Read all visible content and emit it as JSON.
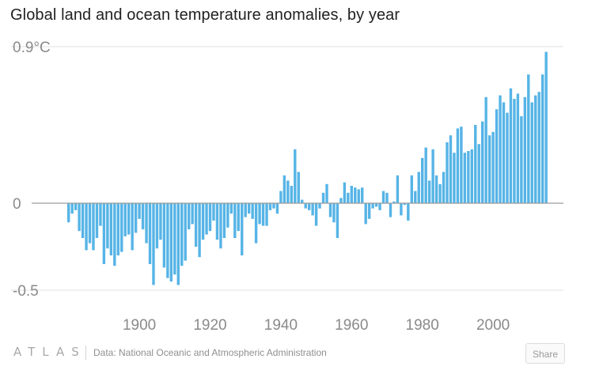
{
  "header": {
    "title": "Global land and ocean temperature anomalies, by year"
  },
  "footer": {
    "logo": "ATLAS",
    "source": "Data: National Oceanic and Atmospheric Administration",
    "share_label": "Share"
  },
  "colors": {
    "bar": "#56b4e6",
    "grid": "#e2e2e2",
    "zero_line": "#9a9a9a",
    "tick_text": "#8a8a8a"
  },
  "chart_data": {
    "type": "bar",
    "title": "Global land and ocean temperature anomalies, by year",
    "xlabel": "",
    "ylabel": "",
    "y_ticks": [
      {
        "value": 0.9,
        "label": "0.9°C"
      },
      {
        "value": 0,
        "label": "0"
      },
      {
        "value": -0.5,
        "label": "-0.5"
      }
    ],
    "x_ticks": [
      1900,
      1920,
      1940,
      1960,
      1980,
      2000
    ],
    "ylim": [
      -0.55,
      0.9
    ],
    "xlim": [
      1875,
      2020
    ],
    "grid": "horizontal",
    "series": [
      {
        "years": [
          1880,
          1881,
          1882,
          1883,
          1884,
          1885,
          1886,
          1887,
          1888,
          1889,
          1890,
          1891,
          1892,
          1893,
          1894,
          1895,
          1896,
          1897,
          1898,
          1899,
          1900,
          1901,
          1902,
          1903,
          1904,
          1905,
          1906,
          1907,
          1908,
          1909,
          1910,
          1911,
          1912,
          1913,
          1914,
          1915,
          1916,
          1917,
          1918,
          1919,
          1920,
          1921,
          1922,
          1923,
          1924,
          1925,
          1926,
          1927,
          1928,
          1929,
          1930,
          1931,
          1932,
          1933,
          1934,
          1935,
          1936,
          1937,
          1938,
          1939,
          1940,
          1941,
          1942,
          1943,
          1944,
          1945,
          1946,
          1947,
          1948,
          1949,
          1950,
          1951,
          1952,
          1953,
          1954,
          1955,
          1956,
          1957,
          1958,
          1959,
          1960,
          1961,
          1962,
          1963,
          1964,
          1965,
          1966,
          1967,
          1968,
          1969,
          1970,
          1971,
          1972,
          1973,
          1974,
          1975,
          1976,
          1977,
          1978,
          1979,
          1980,
          1981,
          1982,
          1983,
          1984,
          1985,
          1986,
          1987,
          1988,
          1989,
          1990,
          1991,
          1992,
          1993,
          1994,
          1995,
          1996,
          1997,
          1998,
          1999,
          2000,
          2001,
          2002,
          2003,
          2004,
          2005,
          2006,
          2007,
          2008,
          2009,
          2010,
          2011,
          2012,
          2013,
          2014,
          2015
        ],
        "values": [
          -0.11,
          -0.06,
          -0.04,
          -0.16,
          -0.2,
          -0.27,
          -0.23,
          -0.27,
          -0.2,
          -0.13,
          -0.35,
          -0.26,
          -0.3,
          -0.36,
          -0.3,
          -0.28,
          -0.19,
          -0.18,
          -0.27,
          -0.17,
          -0.09,
          -0.15,
          -0.23,
          -0.35,
          -0.47,
          -0.26,
          -0.21,
          -0.37,
          -0.43,
          -0.45,
          -0.41,
          -0.47,
          -0.36,
          -0.33,
          -0.15,
          -0.12,
          -0.25,
          -0.31,
          -0.21,
          -0.18,
          -0.16,
          -0.1,
          -0.21,
          -0.26,
          -0.2,
          -0.14,
          -0.06,
          -0.2,
          -0.16,
          -0.3,
          -0.08,
          -0.06,
          -0.09,
          -0.23,
          -0.12,
          -0.13,
          -0.13,
          -0.04,
          -0.03,
          -0.06,
          0.07,
          0.16,
          0.13,
          0.1,
          0.31,
          0.18,
          0.02,
          -0.03,
          -0.04,
          -0.07,
          -0.13,
          -0.03,
          0.06,
          0.11,
          -0.08,
          -0.11,
          -0.2,
          0.03,
          0.12,
          0.06,
          0.1,
          0.09,
          0.08,
          0.09,
          -0.12,
          -0.09,
          -0.03,
          -0.02,
          -0.04,
          0.07,
          0.06,
          -0.08,
          0.01,
          0.16,
          -0.07,
          -0.01,
          -0.1,
          0.16,
          0.07,
          0.18,
          0.26,
          0.32,
          0.13,
          0.31,
          0.16,
          0.11,
          0.18,
          0.35,
          0.39,
          0.29,
          0.43,
          0.44,
          0.29,
          0.3,
          0.31,
          0.45,
          0.34,
          0.47,
          0.61,
          0.39,
          0.41,
          0.54,
          0.62,
          0.58,
          0.52,
          0.66,
          0.6,
          0.63,
          0.5,
          0.61,
          0.74,
          0.58,
          0.62,
          0.64,
          0.74,
          0.87
        ]
      }
    ]
  }
}
